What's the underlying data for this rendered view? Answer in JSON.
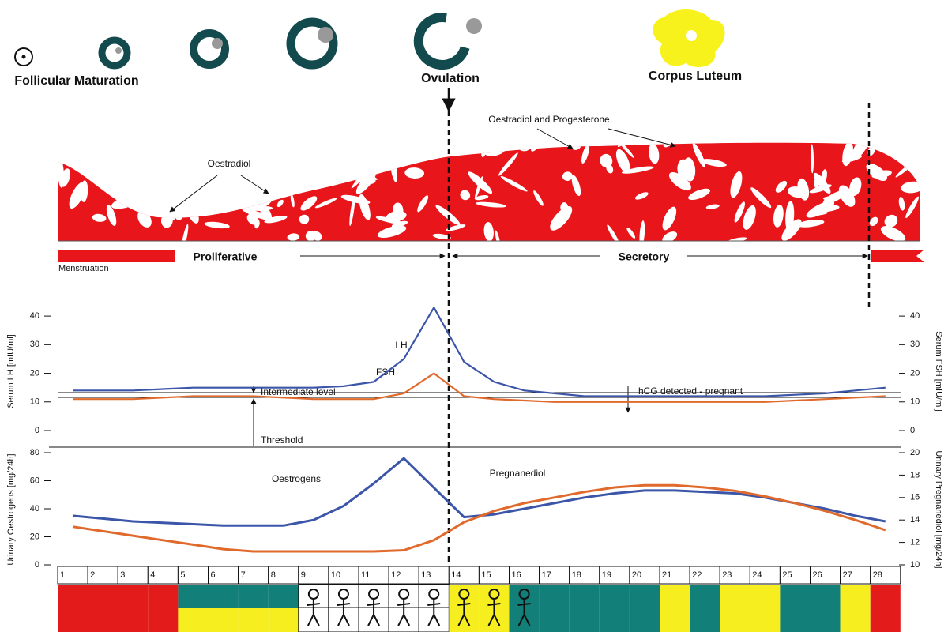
{
  "header": {
    "follicular": "Follicular Maturation",
    "ovulation": "Ovulation",
    "corpus": "Corpus Luteum"
  },
  "endometrium": {
    "oestradiol": "Oestradiol",
    "both": "Oestradiol and Progesterone",
    "menstruation": "Menstruation",
    "proliferative": "Proliferative",
    "secretory": "Secretory"
  },
  "chart_data": [
    {
      "type": "line",
      "y_label": "Serum LH [mIU/ml]",
      "y2_label": "Serum FSH [mIU/ml]",
      "annotations": {
        "intermediate": "Intermediate level",
        "threshold": "Threshold",
        "hcg": "hCG detected - pregnant"
      },
      "x": [
        1,
        2,
        3,
        4,
        5,
        6,
        7,
        8,
        9,
        10,
        11,
        12,
        13,
        14,
        15,
        16,
        17,
        18,
        19,
        20,
        21,
        22,
        23,
        24,
        25,
        26,
        27,
        28
      ],
      "ylim": [
        0,
        45
      ],
      "yticks": [
        0,
        10,
        20,
        30,
        40
      ],
      "y2lim": [
        0,
        45
      ],
      "y2ticks": [
        0,
        10,
        20,
        30,
        40
      ],
      "series": [
        {
          "name": "LH",
          "color": "#3b55a8",
          "values": [
            14,
            14,
            14,
            14.5,
            15,
            15,
            15,
            15,
            15,
            15.5,
            17,
            25,
            43,
            24,
            17,
            14,
            13,
            12,
            12,
            12,
            12,
            12,
            12,
            12,
            12.5,
            13,
            14,
            15
          ]
        },
        {
          "name": "FSH",
          "color": "#e0692c",
          "axis": "y2",
          "values": [
            11,
            11,
            11,
            11.5,
            12,
            12,
            12,
            11.5,
            11,
            11,
            11,
            13,
            20,
            12,
            11,
            10.5,
            10,
            10,
            10,
            10,
            10,
            10,
            10,
            10,
            10.5,
            11,
            11.5,
            12
          ]
        }
      ]
    },
    {
      "type": "line",
      "y_label": "Urinary Oestrogens [mg/24h]",
      "y2_label": "Urinary Pregnanediol [mg/24h]",
      "x": [
        1,
        2,
        3,
        4,
        5,
        6,
        7,
        8,
        9,
        10,
        11,
        12,
        13,
        14,
        15,
        16,
        17,
        18,
        19,
        20,
        21,
        22,
        23,
        24,
        25,
        26,
        27,
        28
      ],
      "ylim": [
        0,
        80
      ],
      "yticks": [
        0,
        20,
        40,
        60,
        80
      ],
      "y2lim": [
        10,
        20
      ],
      "y2ticks": [
        10,
        12,
        14,
        16,
        18,
        20
      ],
      "series": [
        {
          "name": "Oestrogens",
          "color": "#3b55a8",
          "values": [
            35,
            33,
            31,
            30,
            29,
            28,
            28,
            28,
            32,
            42,
            58,
            76,
            55,
            34,
            36,
            40,
            44,
            48,
            51,
            53,
            53,
            52,
            51,
            48,
            44,
            40,
            35,
            31
          ]
        },
        {
          "name": "Pregnanediol",
          "color": "#e0692c",
          "axis": "y2",
          "values": [
            13.4,
            13,
            12.6,
            12.2,
            11.8,
            11.4,
            11.2,
            11.2,
            11.2,
            11.2,
            11.2,
            11.3,
            12.2,
            13.8,
            14.8,
            15.5,
            16,
            16.5,
            16.9,
            17.1,
            17.1,
            16.9,
            16.6,
            16.1,
            15.5,
            14.8,
            14,
            13.1
          ]
        }
      ]
    }
  ],
  "strip": {
    "top": [
      "#e31b1b",
      "#e31b1b",
      "#e31b1b",
      "#e31b1b",
      "#127f78",
      "#127f78",
      "#127f78",
      "#127f78",
      "#ffffff",
      "#ffffff",
      "#ffffff",
      "#ffffff",
      "#ffffff",
      "#f6ee1e",
      "#f6ee1e",
      "#127f78",
      "#127f78",
      "#127f78",
      "#127f78",
      "#127f78",
      "#f6ee1e",
      "#127f78",
      "#f6ee1e",
      "#f6ee1e",
      "#127f78",
      "#127f78",
      "#f6ee1e",
      "#e31b1b"
    ],
    "bottom": [
      "#e31b1b",
      "#e31b1b",
      "#e31b1b",
      "#e31b1b",
      "#f6ee1e",
      "#f6ee1e",
      "#f6ee1e",
      "#f6ee1e",
      "#ffffff",
      "#ffffff",
      "#ffffff",
      "#ffffff",
      "#ffffff",
      "#f6ee1e",
      "#f6ee1e",
      "#127f78",
      "#127f78",
      "#127f78",
      "#127f78",
      "#127f78",
      "#f6ee1e",
      "#127f78",
      "#f6ee1e",
      "#f6ee1e",
      "#127f78",
      "#127f78",
      "#f6ee1e",
      "#e31b1b"
    ],
    "baby": [
      9,
      10,
      11,
      12,
      13,
      14,
      15,
      16
    ]
  }
}
